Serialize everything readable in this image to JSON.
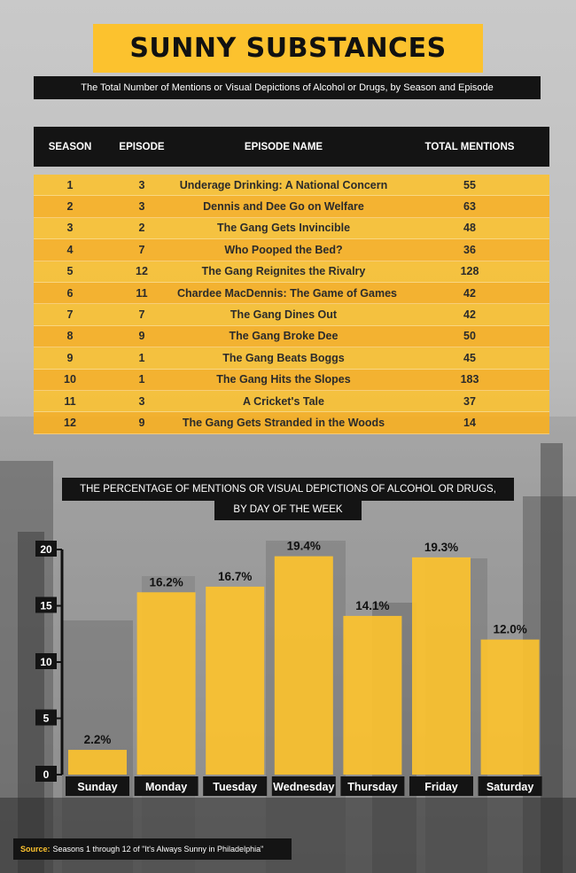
{
  "header": {
    "title": "SUNNY SUBSTANCES",
    "subtitle": "The Total Number of Mentions or Visual Depictions of Alcohol or Drugs, by Season and Episode"
  },
  "table": {
    "columns": [
      "SEASON",
      "EPISODE",
      "EPISODE NAME",
      "TOTAL MENTIONS"
    ],
    "rows": [
      [
        "1",
        "3",
        "Underage Drinking: A National Concern",
        "55"
      ],
      [
        "2",
        "3",
        "Dennis and Dee Go on Welfare",
        "63"
      ],
      [
        "3",
        "2",
        "The Gang Gets Invincible",
        "48"
      ],
      [
        "4",
        "7",
        "Who Pooped the Bed?",
        "36"
      ],
      [
        "5",
        "12",
        "The Gang Reignites the Rivalry",
        "128"
      ],
      [
        "6",
        "11",
        "Chardee MacDennis: The Game of Games",
        "42"
      ],
      [
        "7",
        "7",
        "The Gang Dines Out",
        "42"
      ],
      [
        "8",
        "9",
        "The Gang Broke Dee",
        "50"
      ],
      [
        "9",
        "1",
        "The Gang Beats Boggs",
        "45"
      ],
      [
        "10",
        "1",
        "The Gang Hits the Slopes",
        "183"
      ],
      [
        "11",
        "3",
        "A Cricket's Tale",
        "37"
      ],
      [
        "12",
        "9",
        "The Gang Gets Stranded in the Woods",
        "14"
      ]
    ]
  },
  "chart_title_line1": "THE PERCENTAGE OF MENTIONS OR VISUAL DEPICTIONS OF ALCOHOL OR DRUGS,",
  "chart_title_line2": "BY DAY OF THE WEEK",
  "chart_data": {
    "type": "bar",
    "categories": [
      "Sunday",
      "Monday",
      "Tuesday",
      "Wednesday",
      "Thursday",
      "Friday",
      "Saturday"
    ],
    "values": [
      2.2,
      16.2,
      16.7,
      19.4,
      14.1,
      19.3,
      12.0
    ],
    "value_labels": [
      "2.2%",
      "16.2%",
      "16.7%",
      "19.4%",
      "14.1%",
      "19.3%",
      "12.0%"
    ],
    "yticks": [
      "0",
      "5",
      "10",
      "15",
      "20"
    ],
    "ylim": [
      0,
      20
    ],
    "bar_color": "#fcc22e",
    "grid": false
  },
  "source": {
    "label": "Source:",
    "text": "Seasons 1 through 12 of \"It's Always Sunny in Philadelphia\""
  },
  "colors": {
    "accent": "#fcc22e",
    "dark": "#141414"
  }
}
